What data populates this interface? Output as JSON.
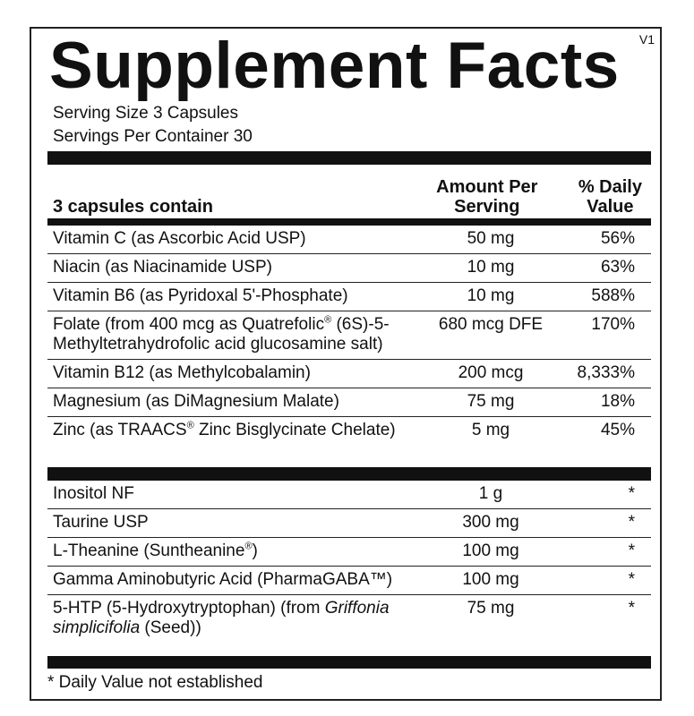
{
  "header": {
    "title": "Supplement Facts",
    "version": "V1",
    "serving_size": "Serving Size 3 Capsules",
    "servings_per_container": "Servings Per Container 30"
  },
  "table": {
    "columns": [
      "3 capsules contain",
      "Amount Per Serving",
      "% Daily Value"
    ],
    "rows": [
      [
        "Vitamin C (as Ascorbic Acid USP)",
        "50 mg",
        "56%"
      ],
      [
        "Niacin (as Niacinamide USP)",
        "10 mg",
        "63%"
      ],
      [
        "Vitamin B6 (as Pyridoxal 5'-Phosphate)",
        "10 mg",
        "588%"
      ],
      [
        "Folate (from 400 mcg as Quatrefolic® (6S)-5-Methyltetrahydrofolic acid glucosamine salt)",
        "680 mcg DFE",
        "170%"
      ],
      [
        "Vitamin B12 (as Methylcobalamin)",
        "200 mcg",
        "8,333%"
      ],
      [
        "Magnesium (as DiMagnesium Malate)",
        "75 mg",
        "18%"
      ],
      [
        "Zinc (as TRAACS® Zinc Bisglycinate Chelate)",
        "5 mg",
        "45%"
      ]
    ],
    "other_rows": [
      [
        "Inositol NF",
        "1 g",
        "*"
      ],
      [
        "Taurine USP",
        "300 mg",
        "*"
      ],
      [
        "L-Theanine (Suntheanine®)",
        "100 mg",
        "*"
      ],
      [
        "Gamma Aminobutyric Acid (PharmaGABA™)",
        "100 mg",
        "*"
      ],
      [
        "5-HTP (5-Hydroxytryptophan) (from ",
        "Griffonia simplicifolia",
        " (Seed))",
        "75 mg",
        "*"
      ]
    ]
  },
  "footnote": "* Daily Value not established"
}
